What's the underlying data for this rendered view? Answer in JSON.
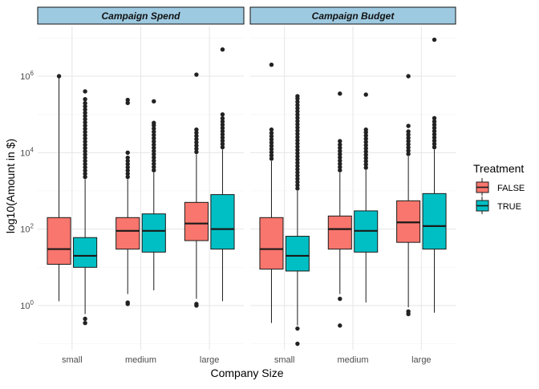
{
  "chart_data": {
    "type": "box",
    "xlabel": "Company Size",
    "ylabel": "log10(Amount in $)",
    "y_scale": "log10",
    "ylim": [
      0.07,
      20000000
    ],
    "y_ticks": [
      1,
      100,
      10000,
      1000000
    ],
    "y_tick_labels": [
      {
        "base": "10",
        "exp": "0"
      },
      {
        "base": "10",
        "exp": "2"
      },
      {
        "base": "10",
        "exp": "4"
      },
      {
        "base": "10",
        "exp": "6"
      }
    ],
    "grid": true,
    "legend": {
      "title": "Treatment",
      "position": "right",
      "entries": [
        {
          "label": "FALSE",
          "color": "#F8766D"
        },
        {
          "label": "TRUE",
          "color": "#00BFC4"
        }
      ]
    },
    "categories": [
      "small",
      "medium",
      "large"
    ],
    "panels": [
      {
        "title": "Campaign Spend",
        "boxes": [
          {
            "category": "small",
            "group": "FALSE",
            "whisker_low": 1.3,
            "q1": 12,
            "median": 30,
            "q3": 200,
            "whisker_high": 950000,
            "outliers": [
              1000000
            ]
          },
          {
            "category": "small",
            "group": "TRUE",
            "whisker_low": 0.6,
            "q1": 10,
            "median": 20,
            "q3": 60,
            "whisker_high": 2000,
            "outliers": [
              0.45,
              0.35,
              250000,
              400000
            ]
          },
          {
            "category": "medium",
            "group": "FALSE",
            "whisker_low": 2,
            "q1": 30,
            "median": 90,
            "q3": 200,
            "whisker_high": 2000,
            "outliers": [
              1.2,
              1.1,
              10000,
              200000,
              240000
            ]
          },
          {
            "category": "medium",
            "group": "TRUE",
            "whisker_low": 2.5,
            "q1": 25,
            "median": 90,
            "q3": 250,
            "whisker_high": 3000,
            "outliers": [
              60000,
              220000
            ]
          },
          {
            "category": "large",
            "group": "FALSE",
            "whisker_low": 1.5,
            "q1": 50,
            "median": 140,
            "q3": 500,
            "whisker_high": 9000,
            "outliers": [
              1.1,
              1.0,
              40000,
              1100000
            ]
          },
          {
            "category": "large",
            "group": "TRUE",
            "whisker_low": 1.3,
            "q1": 30,
            "median": 100,
            "q3": 800,
            "whisker_high": 12000,
            "outliers": [
              100000,
              5000000
            ]
          }
        ]
      },
      {
        "title": "Campaign Budget",
        "boxes": [
          {
            "category": "small",
            "group": "FALSE",
            "whisker_low": 0.35,
            "q1": 9,
            "median": 30,
            "q3": 200,
            "whisker_high": 6000,
            "outliers": [
              40000,
              2000000
            ]
          },
          {
            "category": "small",
            "group": "TRUE",
            "whisker_low": 0.3,
            "q1": 8,
            "median": 20,
            "q3": 65,
            "whisker_high": 1000,
            "outliers": [
              0.25,
              0.1,
              300000
            ]
          },
          {
            "category": "medium",
            "group": "FALSE",
            "whisker_low": 2,
            "q1": 30,
            "median": 100,
            "q3": 220,
            "whisker_high": 3000,
            "outliers": [
              1.5,
              0.3,
              20000,
              350000
            ]
          },
          {
            "category": "medium",
            "group": "TRUE",
            "whisker_low": 1.2,
            "q1": 25,
            "median": 90,
            "q3": 300,
            "whisker_high": 3500,
            "outliers": [
              40000,
              330000
            ]
          },
          {
            "category": "large",
            "group": "FALSE",
            "whisker_low": 0.9,
            "q1": 45,
            "median": 150,
            "q3": 550,
            "whisker_high": 8000,
            "outliers": [
              0.7,
              0.6,
              50000,
              1000000
            ]
          },
          {
            "category": "large",
            "group": "TRUE",
            "whisker_low": 0.65,
            "q1": 30,
            "median": 120,
            "q3": 850,
            "whisker_high": 12000,
            "outliers": [
              80000,
              9000000
            ]
          }
        ]
      }
    ]
  }
}
